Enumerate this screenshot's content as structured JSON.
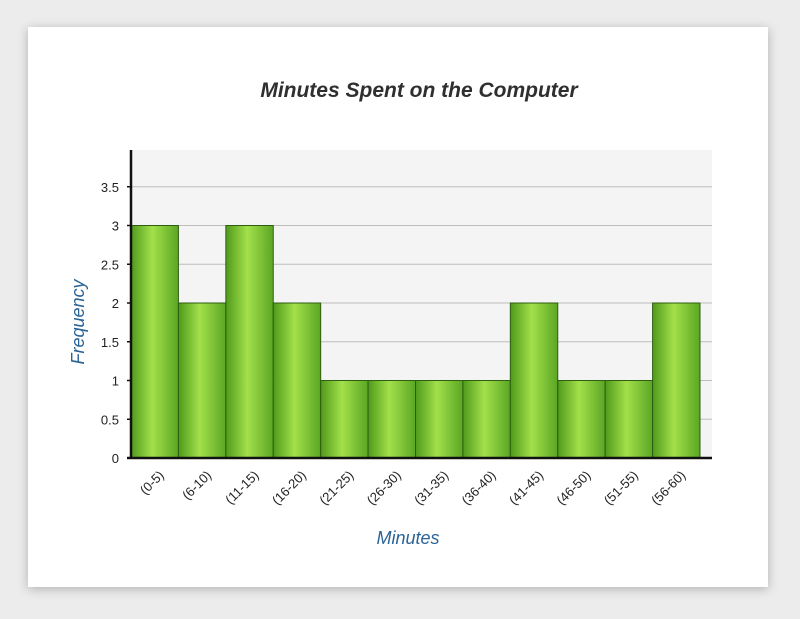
{
  "chart_data": {
    "type": "bar",
    "title": "Minutes Spent on the Computer",
    "xlabel": "Minutes",
    "ylabel": "Frequency",
    "categories": [
      "(0-5)",
      "(6-10)",
      "(11-15)",
      "(16-20)",
      "(21-25)",
      "(26-30)",
      "(31-35)",
      "(36-40)",
      "(41-45)",
      "(46-50)",
      "(51-55)",
      "(56-60)"
    ],
    "values": [
      3,
      2,
      3,
      2,
      1,
      1,
      1,
      1,
      2,
      1,
      1,
      2
    ],
    "yticks": [
      "0",
      "0.5",
      "1",
      "1.5",
      "2",
      "2.5",
      "3",
      "3.5"
    ],
    "ylim": [
      0,
      4
    ],
    "grid": true,
    "colors": {
      "bar_light": "#a3e04a",
      "bar_dark": "#4f9a1c",
      "bar_stroke": "#2e5e10",
      "plot_bg": "#f4f4f4",
      "gridline": "#bdbdbd",
      "label_blue": "#2a6496"
    }
  }
}
